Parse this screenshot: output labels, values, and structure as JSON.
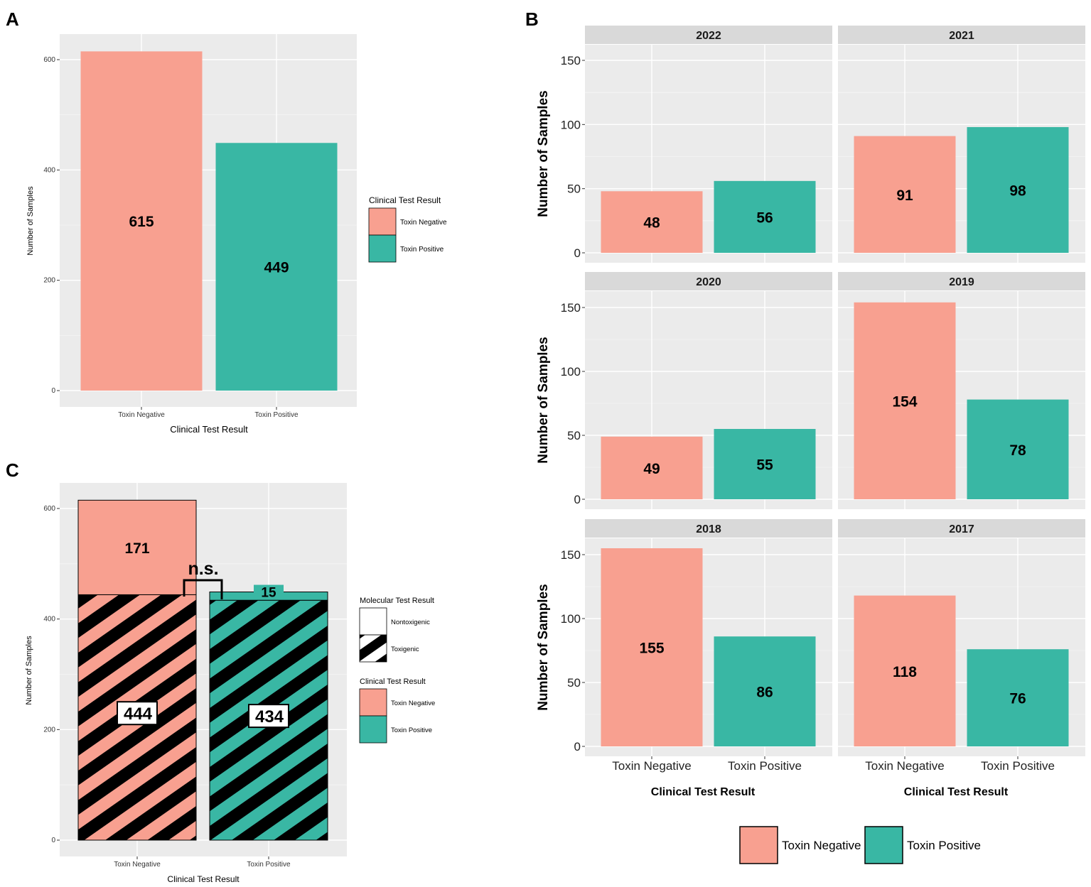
{
  "colors": {
    "toxin_negative": "#F8A090",
    "toxin_positive": "#39B7A4",
    "panel_bg": "#EBEBEB",
    "strip_bg": "#D9D9D9"
  },
  "chart_data": [
    {
      "panel": "A",
      "type": "bar",
      "categories": [
        "Toxin Negative",
        "Toxin Positive"
      ],
      "values": [
        615,
        449
      ],
      "data_labels": [
        "615",
        "449"
      ],
      "xlabel": "Clinical Test Result",
      "ylabel": "Number of Samples",
      "ylim": [
        0,
        640
      ],
      "yticks": [
        0,
        200,
        400,
        600
      ],
      "legend": {
        "title": "Clinical Test Result",
        "items": [
          "Toxin Negative",
          "Toxin Positive"
        ],
        "placement": "right"
      }
    },
    {
      "panel": "B",
      "type": "bar",
      "facets": [
        {
          "title": "2022",
          "values": [
            48,
            56
          ],
          "labels": [
            "48",
            "56"
          ]
        },
        {
          "title": "2021",
          "values": [
            91,
            98
          ],
          "labels": [
            "91",
            "98"
          ]
        },
        {
          "title": "2020",
          "values": [
            49,
            55
          ],
          "labels": [
            "49",
            "55"
          ]
        },
        {
          "title": "2019",
          "values": [
            154,
            78
          ],
          "labels": [
            "154",
            "78"
          ]
        },
        {
          "title": "2018",
          "values": [
            155,
            86
          ],
          "labels": [
            "155",
            "86"
          ]
        },
        {
          "title": "2017",
          "values": [
            118,
            76
          ],
          "labels": [
            "118",
            "76"
          ]
        }
      ],
      "categories": [
        "Toxin Negative",
        "Toxin Positive"
      ],
      "xlabel": "Clinical Test Result",
      "ylabel": "Number  of Samples",
      "ylim": [
        0,
        160
      ],
      "yticks": [
        0,
        50,
        100,
        150
      ],
      "legend": {
        "items": [
          "Toxin Negative",
          "Toxin Positive"
        ],
        "placement": "bottom"
      }
    },
    {
      "panel": "C",
      "type": "stacked-bar",
      "categories": [
        "Toxin Negative",
        "Toxin Positive"
      ],
      "series": [
        {
          "name": "Toxigenic",
          "values": [
            444,
            434
          ],
          "labels": [
            "444",
            "434"
          ]
        },
        {
          "name": "Nontoxigenic",
          "values": [
            171,
            15
          ],
          "labels": [
            "171",
            "15"
          ]
        }
      ],
      "annotation": "n.s.",
      "xlabel": "Clinical Test Result",
      "ylabel": "Number of Samples",
      "ylim": [
        0,
        640
      ],
      "yticks": [
        0,
        200,
        400,
        600
      ],
      "legend": {
        "molecular_title": "Molecular Test Result",
        "molecular_items": [
          "Nontoxigenic",
          "Toxigenic"
        ],
        "clinical_title": "Clinical Test Result",
        "clinical_items": [
          "Toxin Negative",
          "Toxin Positive"
        ],
        "placement": "right"
      }
    }
  ]
}
